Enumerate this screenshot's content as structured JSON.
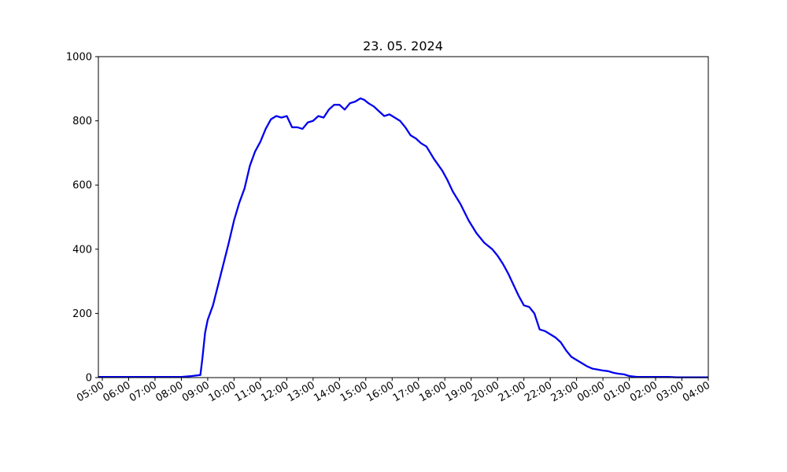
{
  "chart_data": {
    "type": "line",
    "title": "23. 05. 2024",
    "xlabel": "",
    "ylabel": "",
    "ylim": [
      0,
      1000
    ],
    "yticks": [
      0,
      200,
      400,
      600,
      800,
      1000
    ],
    "x_range_hours": [
      4.85,
      28.0
    ],
    "xticks": [
      "05:00",
      "06:00",
      "07:00",
      "08:00",
      "09:00",
      "10:00",
      "11:00",
      "12:00",
      "13:00",
      "14:00",
      "15:00",
      "16:00",
      "17:00",
      "18:00",
      "19:00",
      "20:00",
      "21:00",
      "22:00",
      "23:00",
      "00:00",
      "01:00",
      "02:00",
      "03:00",
      "04:00"
    ],
    "grid": false,
    "legend": "none",
    "series_color": "#0000ee",
    "series": [
      {
        "x": [
          4.85,
          6.0,
          7.0,
          8.0,
          8.4,
          8.72,
          8.8,
          8.9,
          9.0,
          9.2,
          9.4,
          9.6,
          9.8,
          10.0,
          10.2,
          10.4,
          10.6,
          10.8,
          11.0,
          11.2,
          11.4,
          11.6,
          11.8,
          12.0,
          12.2,
          12.4,
          12.6,
          12.8,
          13.0,
          13.2,
          13.4,
          13.6,
          13.8,
          14.0,
          14.2,
          14.4,
          14.6,
          14.8,
          14.95,
          15.1,
          15.3,
          15.5,
          15.7,
          15.9,
          16.1,
          16.3,
          16.5,
          16.7,
          16.9,
          17.1,
          17.3,
          17.6,
          17.9,
          18.1,
          18.3,
          18.6,
          18.9,
          19.2,
          19.5,
          19.8,
          20.0,
          20.2,
          20.4,
          20.6,
          20.8,
          21.0,
          21.2,
          21.4,
          21.6,
          21.8,
          22.0,
          22.2,
          22.4,
          22.6,
          22.8,
          23.0,
          23.2,
          23.4,
          23.6,
          23.8,
          24.0,
          24.2,
          24.4,
          24.6,
          24.8,
          25.0,
          25.3,
          25.6,
          25.9,
          26.2,
          26.5,
          26.8,
          27.0,
          27.5,
          28.0
        ],
        "y": [
          2,
          2,
          2,
          2,
          5,
          8,
          60,
          140,
          180,
          225,
          290,
          355,
          420,
          490,
          545,
          590,
          660,
          705,
          735,
          775,
          805,
          815,
          810,
          815,
          780,
          780,
          775,
          795,
          800,
          815,
          810,
          835,
          850,
          850,
          835,
          855,
          860,
          870,
          865,
          855,
          845,
          830,
          815,
          820,
          810,
          800,
          780,
          755,
          745,
          730,
          720,
          680,
          645,
          615,
          580,
          540,
          490,
          450,
          420,
          400,
          380,
          355,
          325,
          290,
          255,
          225,
          220,
          200,
          150,
          145,
          135,
          125,
          110,
          85,
          65,
          55,
          45,
          35,
          28,
          25,
          22,
          20,
          15,
          12,
          10,
          5,
          2,
          2,
          2,
          2,
          2,
          1,
          1,
          1,
          1
        ]
      }
    ]
  }
}
